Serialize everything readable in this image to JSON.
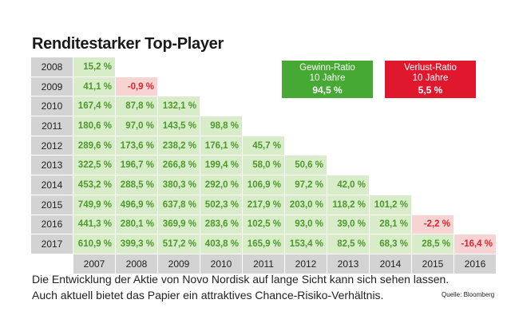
{
  "title": "Renditestarker Top-Player",
  "boxes": {
    "gain": {
      "label_line1": "Gewinn-Ratio",
      "label_line2": "10 Jahre",
      "value": "94,5 %",
      "color": "#45a933"
    },
    "loss": {
      "label_line1": "Verlust-Ratio",
      "label_line2": "10 Jahre",
      "value": "5,5 %",
      "color": "#e0182d"
    }
  },
  "caption": {
    "line1": "Die Entwicklung der Aktie von Novo Nordisk auf lange Sicht kann sich sehen lassen.",
    "line2": "Auch aktuell bietet das Papier ein attraktives Chance-Risiko-Verhältnis."
  },
  "source": "Quelle: Bloomberg",
  "chart_data": {
    "type": "table",
    "title": "Renditestarker Top-Player",
    "columns": [
      "2007",
      "2008",
      "2009",
      "2010",
      "2011",
      "2012",
      "2013",
      "2014",
      "2015",
      "2016"
    ],
    "rows": [
      {
        "year": "2008",
        "values": [
          "15,2 %"
        ]
      },
      {
        "year": "2009",
        "values": [
          "41,1 %",
          "-0,9 %"
        ]
      },
      {
        "year": "2010",
        "values": [
          "167,4 %",
          "87,8 %",
          "132,1 %"
        ]
      },
      {
        "year": "2011",
        "values": [
          "180,6 %",
          "97,0 %",
          "143,5 %",
          "98,8 %"
        ]
      },
      {
        "year": "2012",
        "values": [
          "289,6 %",
          "173,6 %",
          "238,2 %",
          "176,1 %",
          "45,7 %"
        ]
      },
      {
        "year": "2013",
        "values": [
          "322,5 %",
          "196,7 %",
          "266,8 %",
          "199,4 %",
          "58,0 %",
          "50,6 %"
        ]
      },
      {
        "year": "2014",
        "values": [
          "453,2 %",
          "288,5 %",
          "380,3 %",
          "292,0 %",
          "106,9 %",
          "97,2 %",
          "42,0 %"
        ]
      },
      {
        "year": "2015",
        "values": [
          "749,9 %",
          "496,9 %",
          "637,8 %",
          "502,3 %",
          "217,9 %",
          "203,0 %",
          "118,2 %",
          "101,2 %"
        ]
      },
      {
        "year": "2016",
        "values": [
          "441,3 %",
          "280,1 %",
          "369,9 %",
          "283,6 %",
          "102,5 %",
          "93,0 %",
          "39,0 %",
          "28,1 %",
          "-2,2 %"
        ]
      },
      {
        "year": "2017",
        "values": [
          "610,9 %",
          "399,3 %",
          "517,2 %",
          "403,8 %",
          "165,9 %",
          "153,4 %",
          "82,5 %",
          "68,3 %",
          "28,5 %",
          "-16,4 %"
        ]
      }
    ],
    "colors": {
      "positive_bg": "#d9ecc9",
      "positive_text": "#4a9a2a",
      "negative_bg": "#f7d3d3",
      "negative_text": "#d9262e",
      "header_bg": "#d3d3d3"
    }
  }
}
